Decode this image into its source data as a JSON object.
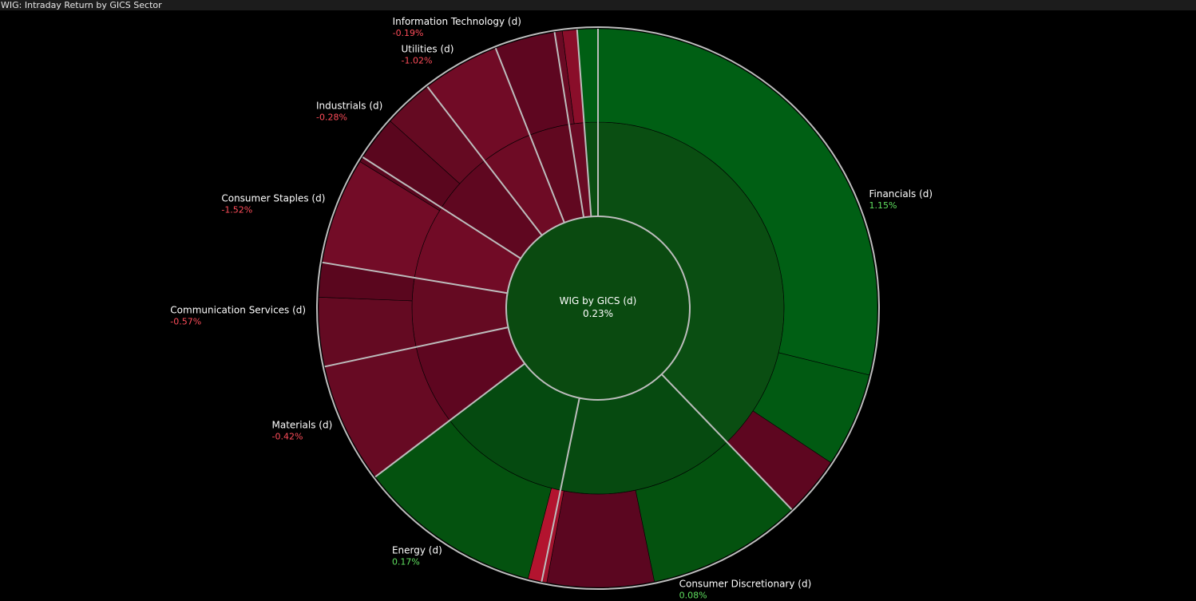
{
  "window": {
    "title": "WIG: Intraday Return by GICS Sector"
  },
  "colors": {
    "background": "#000000",
    "positive_text": "#5fe05f",
    "negative_text": "#ff4d5a",
    "center_fill": "#0a4a10",
    "separator": "#bdbdbd",
    "outer_ring": "#bdbdbd"
  },
  "chart_data": {
    "type": "sunburst",
    "title": "WIG: Intraday Return by GICS Sector",
    "center": {
      "label": "WIG by GICS (d)",
      "value": "0.23%"
    },
    "sectors": [
      {
        "name": "Financials (d)",
        "value": "1.15%",
        "return": 1.15,
        "weight": 38,
        "color": "#0a4e12",
        "children": [
          {
            "weight": 29,
            "color": "#005f14"
          },
          {
            "weight": 5.5,
            "color": "#015a12"
          },
          {
            "weight": 3.5,
            "color": "#5e0620"
          }
        ]
      },
      {
        "name": "Consumer Discretionary (d)",
        "value": "0.08%",
        "return": 0.08,
        "weight": 15.5,
        "color": "#064a10",
        "children": [
          {
            "weight": 9,
            "color": "#04520f"
          },
          {
            "weight": 6.2,
            "color": "#5b0620"
          },
          {
            "weight": 0.3,
            "color": "#a1132e"
          }
        ]
      },
      {
        "name": "Energy (d)",
        "value": "0.17%",
        "return": 0.17,
        "weight": 11.5,
        "color": "#054a10",
        "children": [
          {
            "weight": 0.8,
            "color": "#b3142f"
          },
          {
            "weight": 10.7,
            "color": "#04520f"
          }
        ]
      },
      {
        "name": "Materials (d)",
        "value": "-0.42%",
        "return": -0.42,
        "weight": 7,
        "color": "#5e0620",
        "children": [
          {
            "weight": 7,
            "color": "#670a23"
          }
        ]
      },
      {
        "name": "Communication Services (d)",
        "value": "-0.57%",
        "return": -0.57,
        "weight": 6,
        "color": "#650a22",
        "children": [
          {
            "weight": 4,
            "color": "#640a22"
          },
          {
            "weight": 2,
            "color": "#5a061e"
          }
        ]
      },
      {
        "name": "Consumer Staples (d)",
        "value": "-1.52%",
        "return": -1.52,
        "weight": 6.5,
        "color": "#710b26",
        "children": [
          {
            "weight": 6.2,
            "color": "#730c27"
          },
          {
            "weight": 0.3,
            "color": "#5a061e"
          }
        ]
      },
      {
        "name": "Industrials (d)",
        "value": "-0.28%",
        "return": -0.28,
        "weight": 5.5,
        "color": "#5f0720",
        "children": [
          {
            "weight": 2.6,
            "color": "#5a061e"
          },
          {
            "weight": 2.9,
            "color": "#650a22"
          }
        ]
      },
      {
        "name": "Utilities (d)",
        "value": "-1.02%",
        "return": -1.02,
        "weight": 4.5,
        "color": "#6e0b25",
        "children": [
          {
            "weight": 4.5,
            "color": "#710b26"
          }
        ]
      },
      {
        "name": "Information Technology (d)",
        "value": "-0.19%",
        "return": -0.19,
        "weight": 3.5,
        "color": "#610820",
        "children": [
          {
            "weight": 3.5,
            "color": "#5e0620"
          }
        ]
      },
      {
        "name": "",
        "value": "",
        "weight": 1.3,
        "color": "#6a0a24",
        "children": [
          {
            "weight": 0.45,
            "color": "#6a0a24"
          },
          {
            "weight": 0.85,
            "color": "#8a0e2a"
          }
        ]
      },
      {
        "name": "",
        "value": "",
        "weight": 1.2,
        "color": "#0a4e12",
        "children": [
          {
            "weight": 1.2,
            "color": "#005f14"
          }
        ]
      }
    ]
  }
}
